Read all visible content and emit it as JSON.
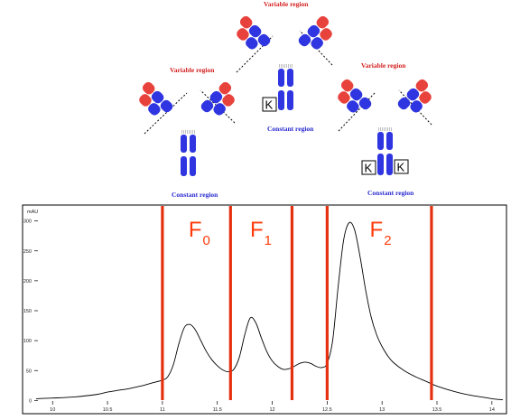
{
  "diagram": {
    "antibodies": [
      {
        "variable_label": "Variable region",
        "constant_label": "Constant region",
        "k_labels": []
      },
      {
        "variable_label": "Variable region",
        "constant_label": "Constant region",
        "k_labels": [
          "K"
        ]
      },
      {
        "variable_label": "Variable region",
        "constant_label": "Constant region",
        "k_labels": [
          "K",
          "K"
        ]
      }
    ],
    "colors": {
      "variable": "#e8423c",
      "heavy_chain": "#2f35e0",
      "text_red": "#d42020",
      "text_blue": "#2a2ad0"
    }
  },
  "chart_data": {
    "type": "line",
    "ylabel": "mAU",
    "xlim": [
      9.85,
      14.1
    ],
    "ylim": [
      -10,
      310
    ],
    "x_ticks": [
      "10",
      "10.5",
      "11",
      "11.5",
      "12",
      "12.5",
      "13",
      "13.5",
      "14"
    ],
    "y_ticks": [
      "0",
      "50",
      "100",
      "150",
      "200",
      "250",
      "300"
    ],
    "grid": false,
    "series": [
      {
        "color": "#000000",
        "x": [
          9.85,
          10.0,
          10.2,
          10.4,
          10.5,
          10.6,
          10.7,
          10.8,
          10.9,
          11.0,
          11.05,
          11.1,
          11.15,
          11.2,
          11.25,
          11.3,
          11.35,
          11.4,
          11.45,
          11.5,
          11.55,
          11.6,
          11.65,
          11.7,
          11.75,
          11.8,
          11.85,
          11.9,
          11.95,
          12.0,
          12.05,
          12.1,
          12.15,
          12.2,
          12.25,
          12.3,
          12.35,
          12.4,
          12.45,
          12.5,
          12.55,
          12.6,
          12.65,
          12.7,
          12.75,
          12.8,
          12.85,
          12.9,
          12.95,
          13.0,
          13.05,
          13.1,
          13.2,
          13.3,
          13.4,
          13.5,
          13.6,
          13.7,
          13.8,
          13.9,
          14.0,
          14.1
        ],
        "y": [
          3,
          4,
          6,
          10,
          14,
          17,
          20,
          24,
          29,
          34,
          40,
          60,
          95,
          122,
          127,
          118,
          100,
          82,
          68,
          58,
          51,
          48,
          52,
          72,
          110,
          138,
          130,
          105,
          82,
          66,
          57,
          52,
          53,
          57,
          62,
          64,
          62,
          57,
          55,
          62,
          100,
          190,
          268,
          297,
          285,
          240,
          185,
          140,
          110,
          90,
          75,
          64,
          50,
          40,
          32,
          24,
          18,
          13,
          9,
          6,
          3,
          1
        ]
      }
    ],
    "fraction_lines_x": [
      11.0,
      11.62,
      12.18,
      12.5,
      13.45
    ],
    "fraction_line_color": "#e53010",
    "fractions": [
      {
        "label": "F",
        "sub": "0",
        "x": 11.32
      },
      {
        "label": "F",
        "sub": "1",
        "x": 11.88
      },
      {
        "label": "F",
        "sub": "2",
        "x": 12.97
      }
    ]
  }
}
